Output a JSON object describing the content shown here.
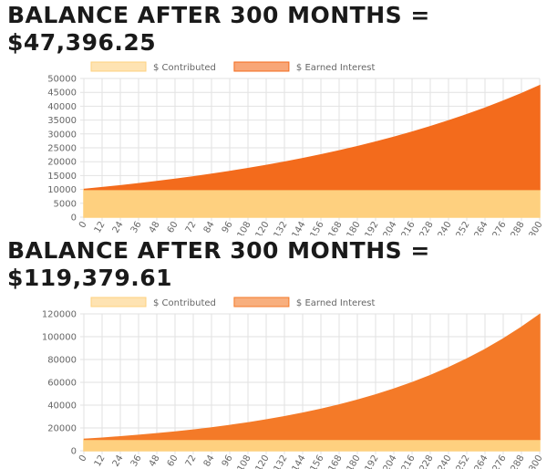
{
  "chart_data": [
    {
      "type": "stacked-area",
      "title": "BALANCE AFTER 300 MONTHS = $47,396.25",
      "x": [
        0,
        12,
        24,
        36,
        48,
        60,
        72,
        84,
        96,
        108,
        120,
        132,
        144,
        156,
        168,
        180,
        192,
        204,
        216,
        228,
        240,
        252,
        264,
        276,
        288,
        300
      ],
      "xlim": [
        0,
        300
      ],
      "series": [
        {
          "name": "$ Contributed",
          "color": "#fed07f",
          "values": [
            10000,
            10000,
            10000,
            10000,
            10000,
            10000,
            10000,
            10000,
            10000,
            10000,
            10000,
            10000,
            10000,
            10000,
            10000,
            10000,
            10000,
            10000,
            10000,
            10000,
            10000,
            10000,
            10000,
            10000,
            10000,
            10000
          ]
        },
        {
          "name": "$ Earned Interest",
          "color": "#f36b1c",
          "values": [
            0,
            642,
            1325,
            2052,
            2826,
            3649,
            4525,
            5457,
            6450,
            7505,
            8629,
            9825,
            11097,
            12451,
            13892,
            15426,
            17058,
            18794,
            20643,
            22609,
            24703,
            26930,
            29300,
            31823,
            34507,
            37396
          ]
        }
      ],
      "ylim": [
        0,
        50000
      ],
      "yticks": [
        0,
        5000,
        10000,
        15000,
        20000,
        25000,
        30000,
        35000,
        40000,
        45000,
        50000
      ],
      "grid": true,
      "legend": "top"
    },
    {
      "type": "stacked-area",
      "title": "BALANCE AFTER 300 MONTHS = $119,379.61",
      "x": [
        0,
        12,
        24,
        36,
        48,
        60,
        72,
        84,
        96,
        108,
        120,
        132,
        144,
        156,
        168,
        180,
        192,
        204,
        216,
        228,
        240,
        252,
        264,
        276,
        288,
        300
      ],
      "xlim": [
        0,
        300
      ],
      "series": [
        {
          "name": "$ Contributed",
          "color": "#fed07f",
          "values": [
            10000,
            10000,
            10000,
            10000,
            10000,
            10000,
            10000,
            10000,
            10000,
            10000,
            10000,
            10000,
            10000,
            10000,
            10000,
            10000,
            10000,
            10000,
            10000,
            10000,
            10000,
            10000,
            10000,
            10000,
            10000,
            10000
          ]
        },
        {
          "name": "$ Earned Interest",
          "color": "#f47a28",
          "values": [
            0,
            1043,
            2195,
            3467,
            4872,
            6423,
            8136,
            10028,
            12117,
            14424,
            16972,
            19785,
            22892,
            26323,
            30112,
            34296,
            38917,
            44019,
            49654,
            55876,
            62748,
            70336,
            78716,
            87970,
            98189,
            109380
          ]
        }
      ],
      "ylim": [
        0,
        120000
      ],
      "yticks": [
        0,
        20000,
        40000,
        60000,
        80000,
        100000,
        120000
      ],
      "grid": true,
      "legend": "top"
    }
  ]
}
